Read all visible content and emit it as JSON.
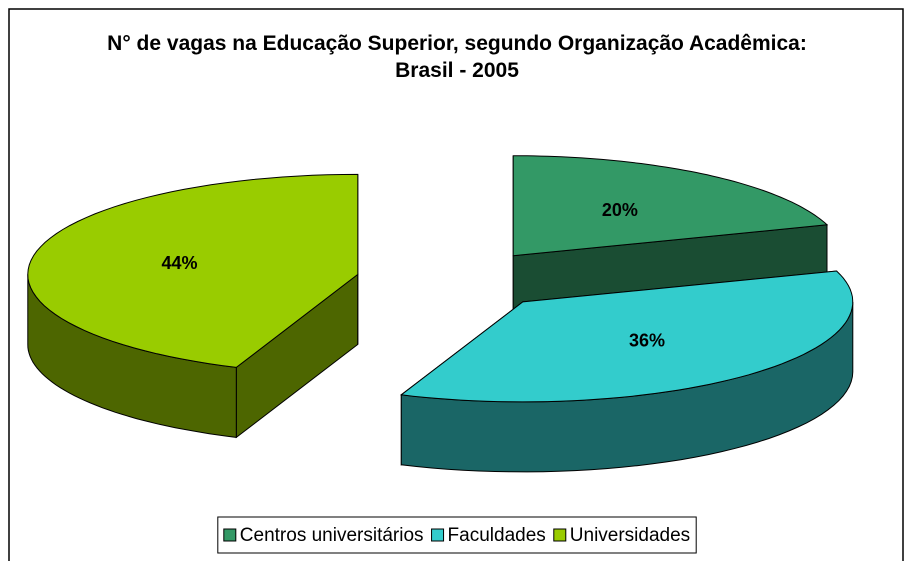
{
  "chart_data": {
    "type": "pie3d",
    "title": "N° de vagas na Educação Superior, segundo Organização Acadêmica: Brasil - 2005",
    "categories": [
      "Centros universitários",
      "Faculdades",
      "Universidades"
    ],
    "values": [
      20,
      36,
      44
    ],
    "value_labels": [
      "20%",
      "36%",
      "44%"
    ],
    "colors": [
      "#339966",
      "#33cccc",
      "#99cc00"
    ],
    "legend": "bottom"
  }
}
